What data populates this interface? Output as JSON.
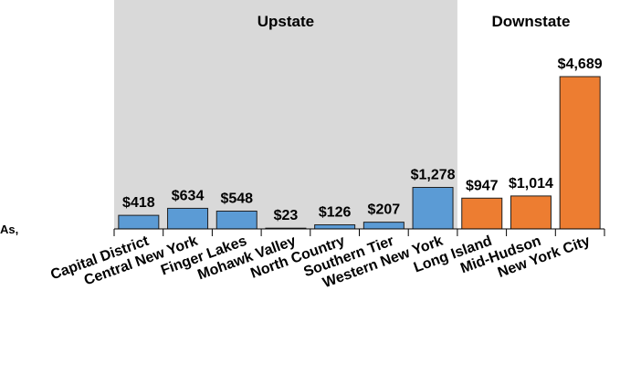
{
  "chart_data": {
    "type": "bar",
    "categories": [
      "Capital District",
      "Central New York",
      "Finger Lakes",
      "Mohawk Valley",
      "North Country",
      "Southern Tier",
      "Western New York",
      "Long Island",
      "Mid-Hudson",
      "New York City"
    ],
    "values": [
      418,
      634,
      548,
      23,
      126,
      207,
      1278,
      947,
      1014,
      4689
    ],
    "value_labels": [
      "$418",
      "$634",
      "$548",
      "$23",
      "$126",
      "$207",
      "$1,278",
      "$947",
      "$1,014",
      "$4,689"
    ],
    "groups": [
      {
        "name": "Upstate",
        "color": "#5b9bd5",
        "shaded": true,
        "categories": [
          "Capital District",
          "Central New York",
          "Finger Lakes",
          "Mohawk Valley",
          "North Country",
          "Southern Tier",
          "Western New York"
        ]
      },
      {
        "name": "Downstate",
        "color": "#ed7d31",
        "shaded": false,
        "categories": [
          "Long Island",
          "Mid-Hudson",
          "New York City"
        ]
      }
    ],
    "annotations": [
      "As,"
    ]
  }
}
